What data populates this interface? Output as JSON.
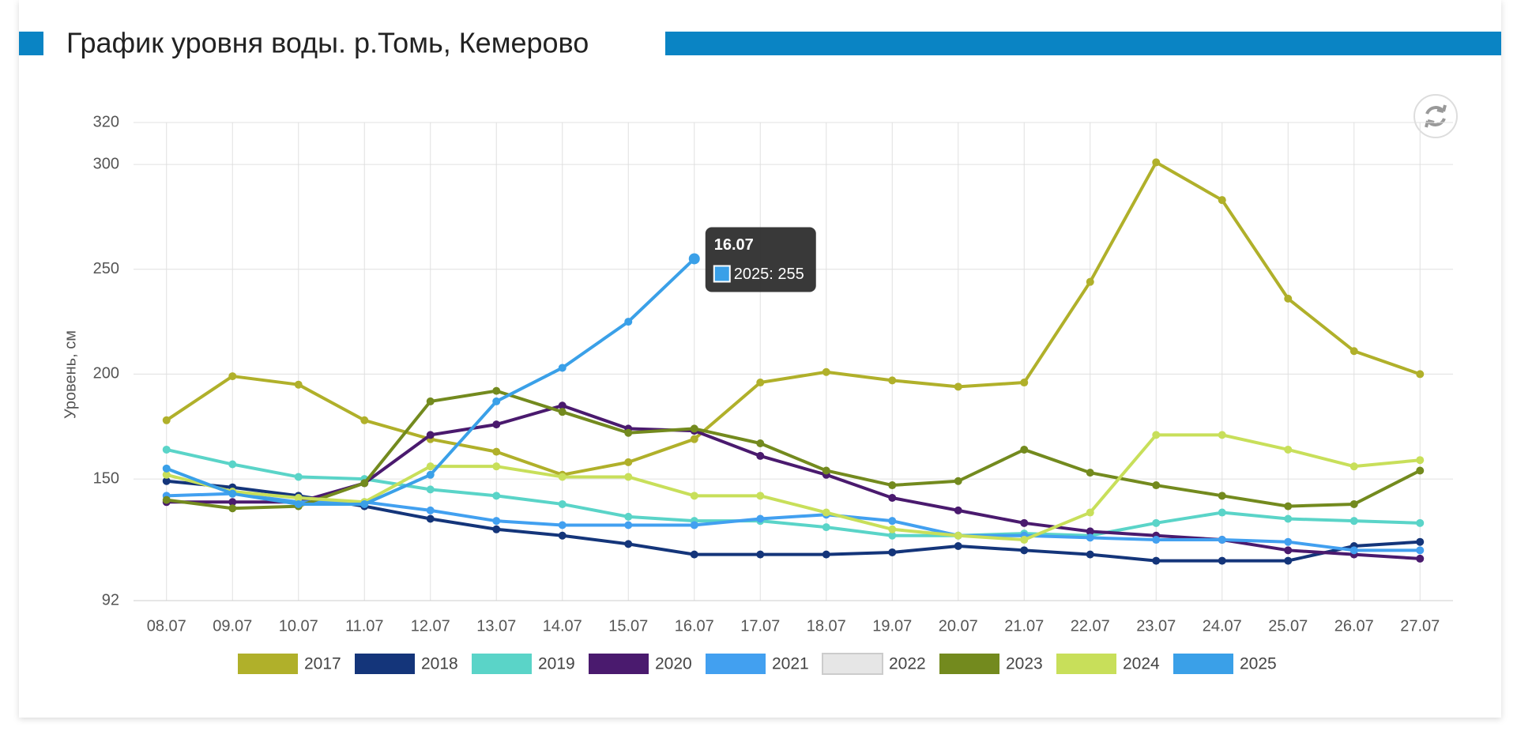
{
  "chart_data": {
    "type": "line",
    "title": "График уровня воды. р.Томь, Кемерово",
    "ylabel": "Уровень, см",
    "categories": [
      "08.07",
      "09.07",
      "10.07",
      "11.07",
      "12.07",
      "13.07",
      "14.07",
      "15.07",
      "16.07",
      "17.07",
      "18.07",
      "19.07",
      "20.07",
      "21.07",
      "22.07",
      "23.07",
      "24.07",
      "25.07",
      "26.07",
      "27.07"
    ],
    "ylim": [
      92,
      320
    ],
    "yticks": [
      92,
      150,
      200,
      250,
      300,
      320
    ],
    "grid": true,
    "legend": "bottom",
    "series": [
      {
        "name": "2017",
        "color": "#b0b02a",
        "values": [
          178,
          199,
          195,
          178,
          169,
          163,
          152,
          158,
          169,
          196,
          201,
          197,
          194,
          196,
          244,
          301,
          283,
          236,
          211,
          200
        ]
      },
      {
        "name": "2018",
        "color": "#14357a",
        "values": [
          149,
          146,
          142,
          137,
          131,
          126,
          123,
          119,
          114,
          114,
          114,
          115,
          118,
          116,
          114,
          111,
          111,
          111,
          118,
          120
        ]
      },
      {
        "name": "2019",
        "color": "#5ad4c8",
        "values": [
          164,
          157,
          151,
          150,
          145,
          142,
          138,
          132,
          130,
          130,
          127,
          123,
          123,
          124,
          123,
          129,
          134,
          131,
          130,
          129
        ]
      },
      {
        "name": "2020",
        "color": "#4a1a6e",
        "values": [
          139,
          139,
          139,
          148,
          171,
          176,
          185,
          174,
          173,
          161,
          152,
          141,
          135,
          129,
          125,
          123,
          121,
          116,
          114,
          112
        ]
      },
      {
        "name": "2021",
        "color": "#42a0f0",
        "values": [
          142,
          143,
          139,
          139,
          135,
          130,
          128,
          128,
          128,
          131,
          133,
          130,
          123,
          123,
          122,
          121,
          121,
          120,
          116,
          116
        ]
      },
      {
        "name": "2022",
        "color": "#e6e6e6",
        "hidden": true,
        "values": [
          null,
          null,
          null,
          null,
          null,
          null,
          null,
          null,
          null,
          null,
          null,
          null,
          null,
          null,
          null,
          null,
          null,
          null,
          null,
          null
        ]
      },
      {
        "name": "2023",
        "color": "#738a1e",
        "values": [
          140,
          136,
          137,
          148,
          187,
          192,
          182,
          172,
          174,
          167,
          154,
          147,
          149,
          164,
          153,
          147,
          142,
          137,
          138,
          154
        ]
      },
      {
        "name": "2024",
        "color": "#c8df5a",
        "values": [
          152,
          144,
          141,
          139,
          156,
          156,
          151,
          151,
          142,
          142,
          134,
          126,
          123,
          121,
          134,
          171,
          171,
          164,
          156,
          159
        ]
      },
      {
        "name": "2025",
        "color": "#3aa0e8",
        "values": [
          155,
          143,
          138,
          138,
          152,
          187,
          203,
          225,
          255,
          null,
          null,
          null,
          null,
          null,
          null,
          null,
          null,
          null,
          null,
          null
        ]
      }
    ],
    "tooltip": {
      "title": "16.07",
      "label": "2025: 255",
      "series": 8,
      "index": 8
    }
  }
}
